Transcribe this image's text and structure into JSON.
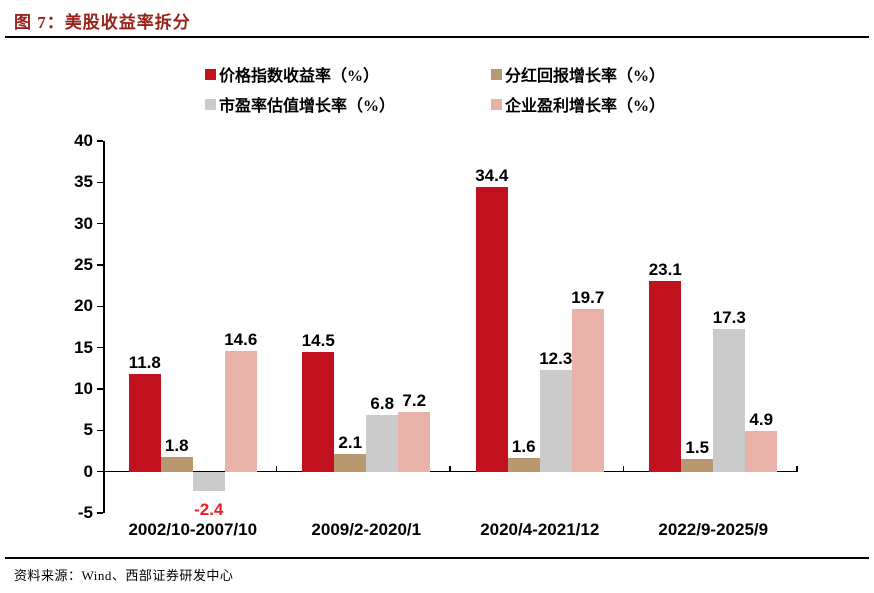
{
  "page": {
    "figure_title": "图 7：美股收益率拆分",
    "source_note": "资料来源：Wind、西部证券研发中心"
  },
  "chart_data": {
    "type": "bar",
    "title": "图 7：美股收益率拆分",
    "categories": [
      "2002/10-2007/10",
      "2009/2-2020/1",
      "2020/4-2021/12",
      "2022/9-2025/9"
    ],
    "series": [
      {
        "name": "价格指数收益率（%）",
        "color": "#C1111E",
        "values": [
          11.8,
          14.5,
          34.4,
          23.1
        ]
      },
      {
        "name": "分红回报增长率（%）",
        "color": "#B9976F",
        "values": [
          1.8,
          2.1,
          1.6,
          1.5
        ]
      },
      {
        "name": "市盈率估值增长率（%）",
        "color": "#CBCBCB",
        "values": [
          -2.4,
          6.8,
          12.3,
          17.3
        ]
      },
      {
        "name": "企业盈利增长率（%）",
        "color": "#E9B2A8",
        "values": [
          14.6,
          7.2,
          19.7,
          4.9
        ]
      }
    ],
    "ylim": [
      -5,
      40
    ],
    "ytick_step": 5,
    "grid": false,
    "legend_position": "top",
    "value_label_decimals": 1,
    "value_label_color": "#000000",
    "negative_value_label_color": "#EC1C24",
    "axis_color": "#000000"
  }
}
